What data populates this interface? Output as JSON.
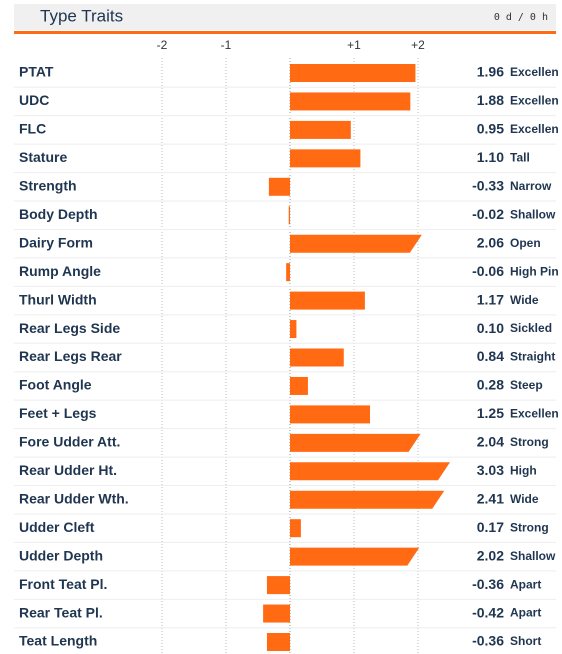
{
  "chart_data": {
    "type": "hbar",
    "title": "Type Traits",
    "subtitle": "0 d / 0 h",
    "categories": [
      "PTAT",
      "UDC",
      "FLC",
      "Stature",
      "Strength",
      "Body Depth",
      "Dairy Form",
      "Rump Angle",
      "Thurl Width",
      "Rear Legs Side",
      "Rear Legs Rear",
      "Foot Angle",
      "Feet + Legs",
      "Fore Udder Att.",
      "Rear Udder Ht.",
      "Rear Udder Wth.",
      "Udder Cleft",
      "Udder Depth",
      "Front Teat Pl.",
      "Rear Teat Pl.",
      "Teat Length"
    ],
    "values": [
      1.96,
      1.88,
      0.95,
      1.1,
      -0.33,
      -0.02,
      2.06,
      -0.06,
      1.17,
      0.1,
      0.84,
      0.28,
      1.25,
      2.04,
      3.03,
      2.41,
      0.17,
      2.02,
      -0.36,
      -0.42,
      -0.36
    ],
    "value_labels": [
      "1.96",
      "1.88",
      "0.95",
      "1.10",
      "-0.33",
      "-0.02",
      "2.06",
      "-0.06",
      "1.17",
      "0.10",
      "0.84",
      "0.28",
      "1.25",
      "2.04",
      "3.03",
      "2.41",
      "0.17",
      "2.02",
      "-0.36",
      "-0.42",
      "-0.36"
    ],
    "descriptors": [
      "Excellen",
      "Excellen",
      "Excellen",
      "Tall",
      "Narrow",
      "Shallow",
      "Open",
      "High Pin",
      "Wide",
      "Sickled",
      "Straight",
      "Steep",
      "Excellen",
      "Strong",
      "High",
      "Wide",
      "Strong",
      "Shallow",
      "Apart",
      "Apart",
      "Short"
    ],
    "color": "#ff6a13",
    "xlim": [
      -2.5,
      2.5
    ],
    "xticks": [
      -2,
      -1,
      {
        "value": 1,
        "label": "+1"
      },
      {
        "value": 2,
        "label": "+2"
      }
    ],
    "grid": true
  }
}
